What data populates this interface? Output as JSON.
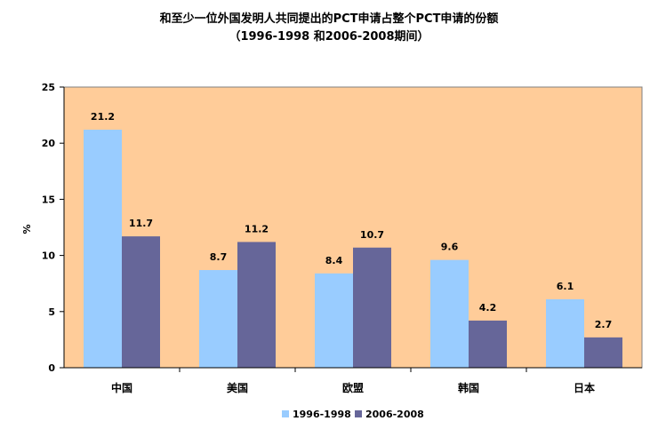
{
  "chart_data": {
    "type": "bar",
    "title": "和至少一位外国发明人共同提出的PCT申请占整个PCT申请的份额",
    "subtitle": "（1996-1998 和2006-2008期间）",
    "ylabel": "%",
    "xlabel": "",
    "ylim": [
      0,
      25
    ],
    "yticks": [
      0,
      5,
      10,
      15,
      20,
      25
    ],
    "grid": false,
    "legend_position": "bottom",
    "categories": [
      "中国",
      "美国",
      "欧盟",
      "韩国",
      "日本"
    ],
    "series": [
      {
        "name": "1996-1998",
        "color": "#99ccff",
        "values": [
          21.2,
          8.7,
          8.4,
          9.6,
          6.1
        ]
      },
      {
        "name": "2006-2008",
        "color": "#666699",
        "values": [
          11.7,
          11.2,
          10.7,
          4.2,
          2.7
        ]
      }
    ],
    "plot_background": "#ffcc99"
  }
}
